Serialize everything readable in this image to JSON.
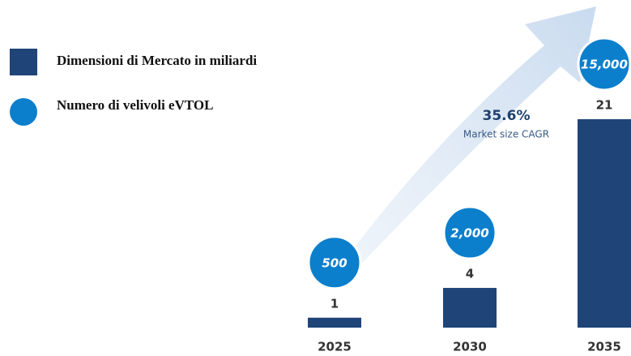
{
  "chart_data": {
    "type": "bar",
    "categories": [
      "2025",
      "2030",
      "2035"
    ],
    "series": [
      {
        "name": "Dimensioni di Mercato in miliardi",
        "color": "#1f4478",
        "values": [
          1,
          4,
          21
        ]
      },
      {
        "name": "Numero di velivoli eVTOL",
        "color": "#0b7fcc",
        "values": [
          500,
          2000,
          15000
        ],
        "value_labels": [
          "500",
          "2,000",
          "15,000"
        ]
      }
    ],
    "annotations": [
      "35.6%",
      "Market size CAGR"
    ]
  }
}
